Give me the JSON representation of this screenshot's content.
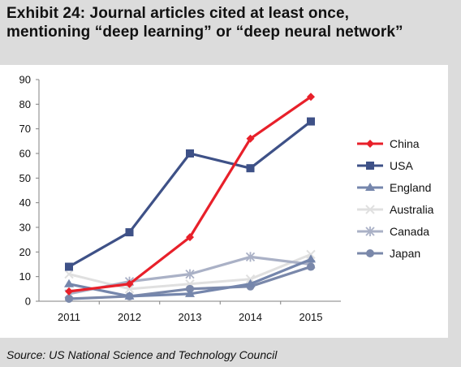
{
  "title_line1": "Exhibit 24: Journal articles cited at least once,",
  "title_line2": "mentioning “deep learning” or “deep neural network”",
  "source": "Source: US National Science and Technology Council",
  "chart_data": {
    "type": "line",
    "title": "Exhibit 24: Journal articles cited at least once, mentioning “deep learning” or “deep neural network”",
    "xlabel": "",
    "ylabel": "",
    "x": [
      "2011",
      "2012",
      "2013",
      "2014",
      "2015"
    ],
    "ylim": [
      0,
      90
    ],
    "yticks": [
      0,
      10,
      20,
      30,
      40,
      50,
      60,
      70,
      80,
      90
    ],
    "grid": false,
    "legend_position": "right",
    "series": [
      {
        "name": "China",
        "values": [
          4,
          7,
          26,
          66,
          83
        ],
        "color": "#e8202a",
        "marker": "diamond"
      },
      {
        "name": "USA",
        "values": [
          14,
          28,
          60,
          54,
          73
        ],
        "color": "#3e5187",
        "marker": "square"
      },
      {
        "name": "England",
        "values": [
          7,
          2,
          3,
          7,
          17
        ],
        "color": "#7586ac",
        "marker": "triangle"
      },
      {
        "name": "Australia",
        "values": [
          11,
          5,
          7,
          9,
          19
        ],
        "color": "#e0e0e0",
        "marker": "x"
      },
      {
        "name": "Canada",
        "values": [
          3,
          8,
          11,
          18,
          15
        ],
        "color": "#aab1c6",
        "marker": "star"
      },
      {
        "name": "Japan",
        "values": [
          1,
          2,
          5,
          6,
          14
        ],
        "color": "#7a88aa",
        "marker": "circle"
      }
    ]
  }
}
